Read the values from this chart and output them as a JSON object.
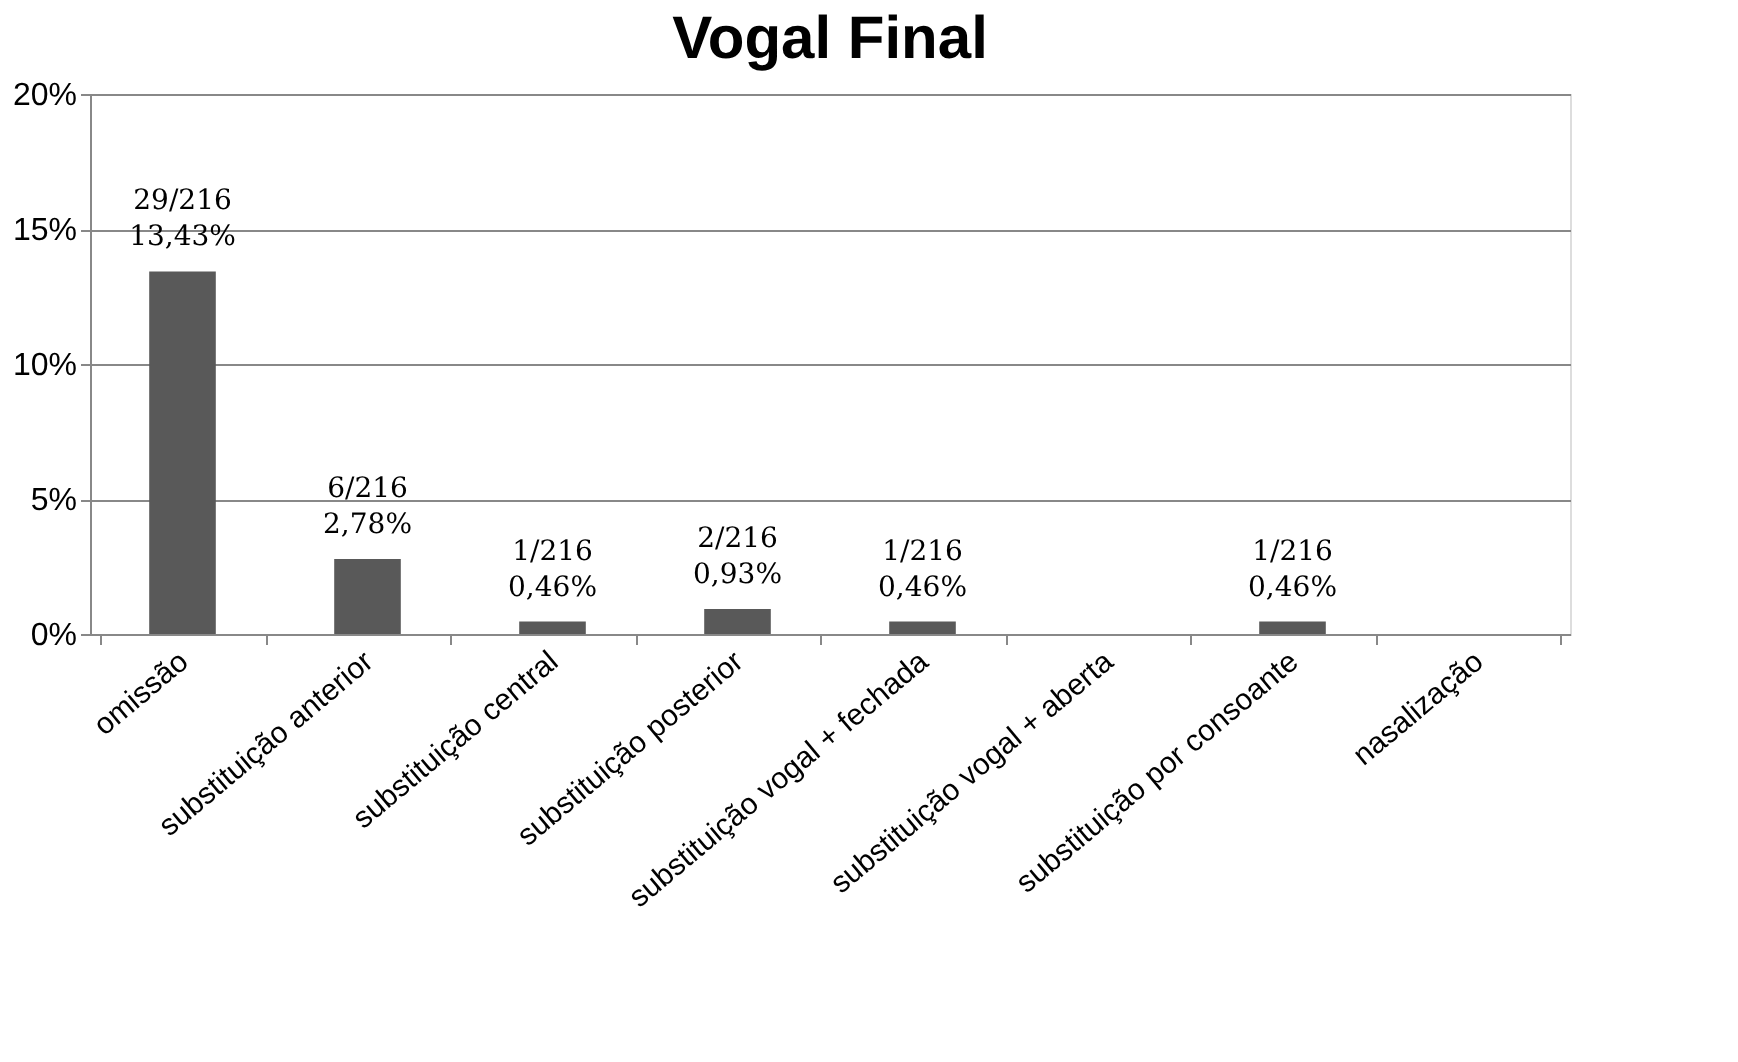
{
  "chart_data": {
    "type": "bar",
    "title": "Vogal Final",
    "categories": [
      "omissão",
      "substituição anterior",
      "substituição central",
      "substituição posterior",
      "substituição vogal + fechada",
      "substituição  vogal + aberta",
      "substituição por consoante",
      "nasalização"
    ],
    "values": [
      13.43,
      2.78,
      0.46,
      0.93,
      0.46,
      0,
      0.46,
      0
    ],
    "value_labels": [
      "29/216\n13,43%",
      "6/216\n2,78%",
      "1/216\n0,46%",
      "2/216\n0,93%",
      "1/216\n0,46%",
      null,
      "1/216\n0,46%",
      null
    ],
    "color": "#595959",
    "ylim": [
      0,
      20
    ],
    "yticks": [
      {
        "value": 0,
        "label": "0%"
      },
      {
        "value": 5,
        "label": "5%"
      },
      {
        "value": 10,
        "label": "10%"
      },
      {
        "value": 15,
        "label": "15%"
      },
      {
        "value": 20,
        "label": "20%"
      }
    ],
    "grid": "y"
  }
}
